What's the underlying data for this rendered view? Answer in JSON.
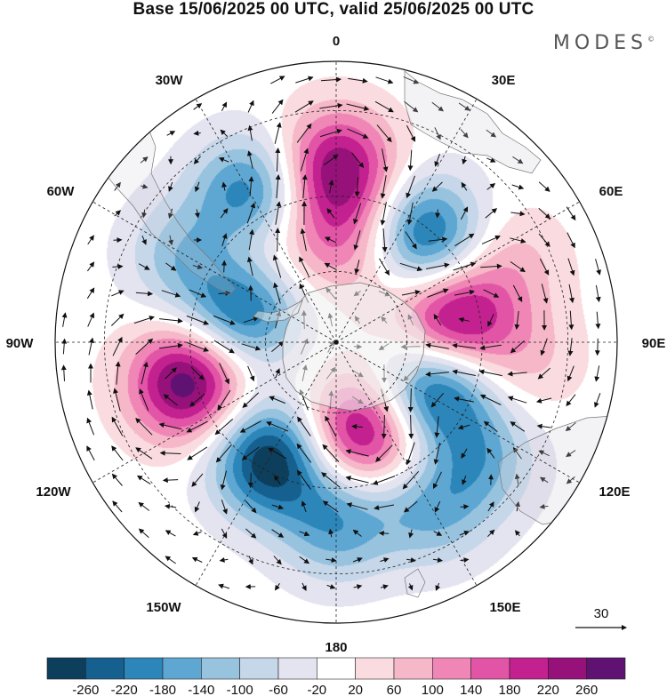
{
  "title": "Base 15/06/2025 00 UTC, valid 25/06/2025 00 UTC",
  "brand": "MODES",
  "brand_mark": "©",
  "longitude_labels": {
    "lon_0": "0",
    "lon_30e": "30E",
    "lon_60e": "60E",
    "lon_90e": "90E",
    "lon_120e": "120E",
    "lon_150e": "150E",
    "lon_180": "180",
    "lon_150w": "150W",
    "lon_120w": "120W",
    "lon_90w": "90W",
    "lon_60w": "60W",
    "lon_30w": "30W"
  },
  "vector_reference": {
    "value": "30"
  },
  "colorbar": {
    "tick_labels": [
      "-260",
      "-220",
      "-180",
      "-140",
      "-100",
      "-60",
      "-20",
      "20",
      "60",
      "100",
      "140",
      "180",
      "220",
      "260"
    ],
    "colors": [
      "#0d3e5c",
      "#15608f",
      "#2d86b9",
      "#5ea7d2",
      "#97c3df",
      "#c6d7ea",
      "#e4e3f0",
      "#ffffff",
      "#fadbe0",
      "#f6b7c8",
      "#ef86b6",
      "#e254a6",
      "#c3218f",
      "#96117a",
      "#5f1272"
    ]
  },
  "anomaly_centers": [
    {
      "lon": 0,
      "lat": -43,
      "value": 220
    },
    {
      "lon": 40,
      "lat": -52,
      "value": -230
    },
    {
      "lon": 80,
      "lat": -58,
      "value": 240
    },
    {
      "lon": 115,
      "lat": -60,
      "value": -250
    },
    {
      "lon": 130,
      "lat": -42,
      "value": -150
    },
    {
      "lon": 150,
      "lat": -40,
      "value": -140
    },
    {
      "lon": 165,
      "lat": -64,
      "value": 230
    },
    {
      "lon": 180,
      "lat": -42,
      "value": -150
    },
    {
      "lon": 140,
      "lat": -48,
      "value": 80
    },
    {
      "lon": 65,
      "lat": -40,
      "value": 70
    },
    {
      "lon": 95,
      "lat": -40,
      "value": 60
    },
    {
      "lon": -150,
      "lat": -53,
      "value": -260
    },
    {
      "lon": -105,
      "lat": -48,
      "value": 260
    },
    {
      "lon": -70,
      "lat": -62,
      "value": -220
    },
    {
      "lon": -60,
      "lat": -43,
      "value": -110
    },
    {
      "lon": -30,
      "lat": -44,
      "value": -200
    },
    {
      "lon": -45,
      "lat": -55,
      "value": 90
    },
    {
      "lon": 15,
      "lat": -62,
      "value": 60
    },
    {
      "lon": -5,
      "lat": -60,
      "value": 70
    }
  ]
}
